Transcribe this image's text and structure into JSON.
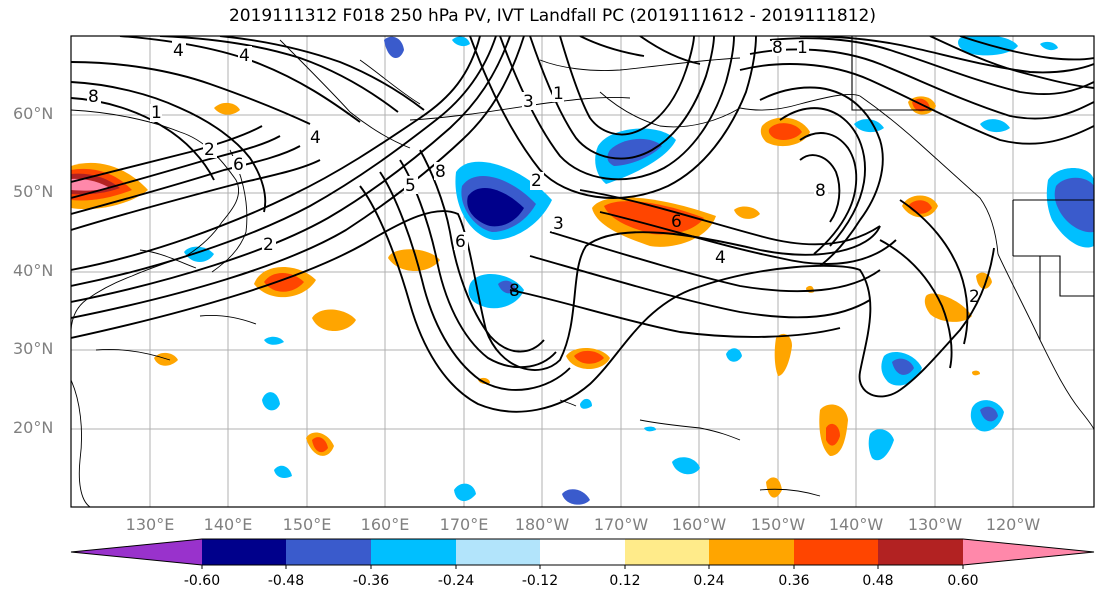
{
  "title": "2019111312 F018 250 hPa PV, IVT Landfall PC (2019111612 - 2019111812)",
  "lat_labels": [
    "60°N",
    "50°N",
    "40°N",
    "30°N",
    "20°N"
  ],
  "lon_labels": [
    "130°E",
    "140°E",
    "150°E",
    "160°E",
    "170°E",
    "180°W",
    "170°W",
    "160°W",
    "150°W",
    "140°W",
    "130°W",
    "120°W"
  ],
  "contour_labels": [
    "4",
    "4",
    "8",
    "1",
    "4",
    "2",
    "6",
    "2",
    "8",
    "6",
    "3",
    "3",
    "1",
    "2",
    "6",
    "4",
    "8",
    "8",
    "1",
    "2",
    "5",
    "8"
  ],
  "colorbar": {
    "ticks": [
      "-0.60",
      "-0.48",
      "-0.36",
      "-0.24",
      "-0.12",
      "0.12",
      "0.24",
      "0.36",
      "0.48",
      "0.60"
    ],
    "colors": [
      "#9932cc",
      "#00008b",
      "#3a5bcc",
      "#00bfff",
      "#b2e4fb",
      "#ffffff",
      "#ffeb8a",
      "#ffa500",
      "#ff4500",
      "#b22222",
      "#ff88aa"
    ]
  }
}
